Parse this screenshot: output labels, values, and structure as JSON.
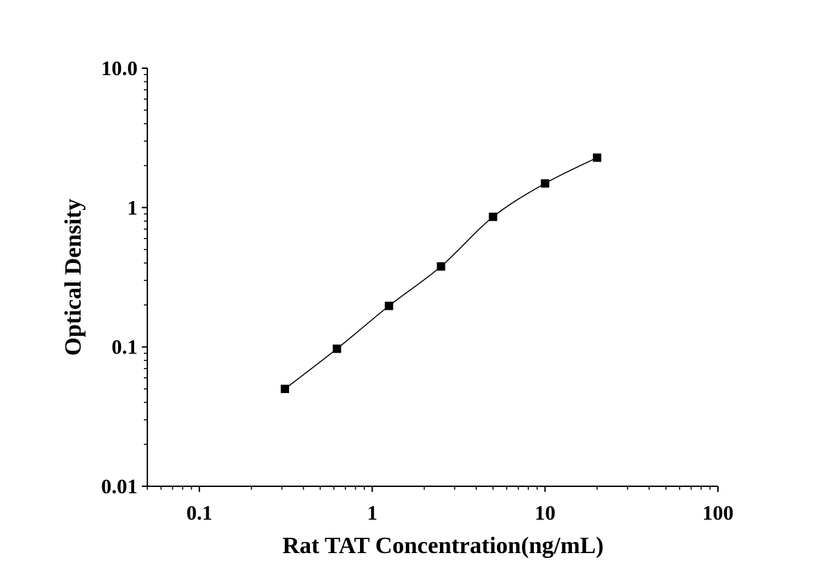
{
  "chart_data": {
    "type": "line",
    "xlabel": "Rat TAT Concentration(ng/mL)",
    "ylabel": "Optical Density",
    "x_scale": "log",
    "y_scale": "log",
    "xlim": [
      0.05,
      100
    ],
    "ylim": [
      0.01,
      10
    ],
    "x_tick_labels": [
      "0.1",
      "1",
      "10",
      "100"
    ],
    "y_tick_labels": [
      "0.01",
      "0.1",
      "1",
      "10.0"
    ],
    "grid": false,
    "marker": "filled-square",
    "series": [
      {
        "x": [
          0.3125,
          0.625,
          1.25,
          2.5,
          5,
          10,
          20
        ],
        "values": [
          0.05,
          0.097,
          0.197,
          0.378,
          0.858,
          1.49,
          2.28
        ]
      }
    ],
    "colors": {
      "line": "#000000",
      "marker": "#000000",
      "axis": "#000000"
    }
  }
}
